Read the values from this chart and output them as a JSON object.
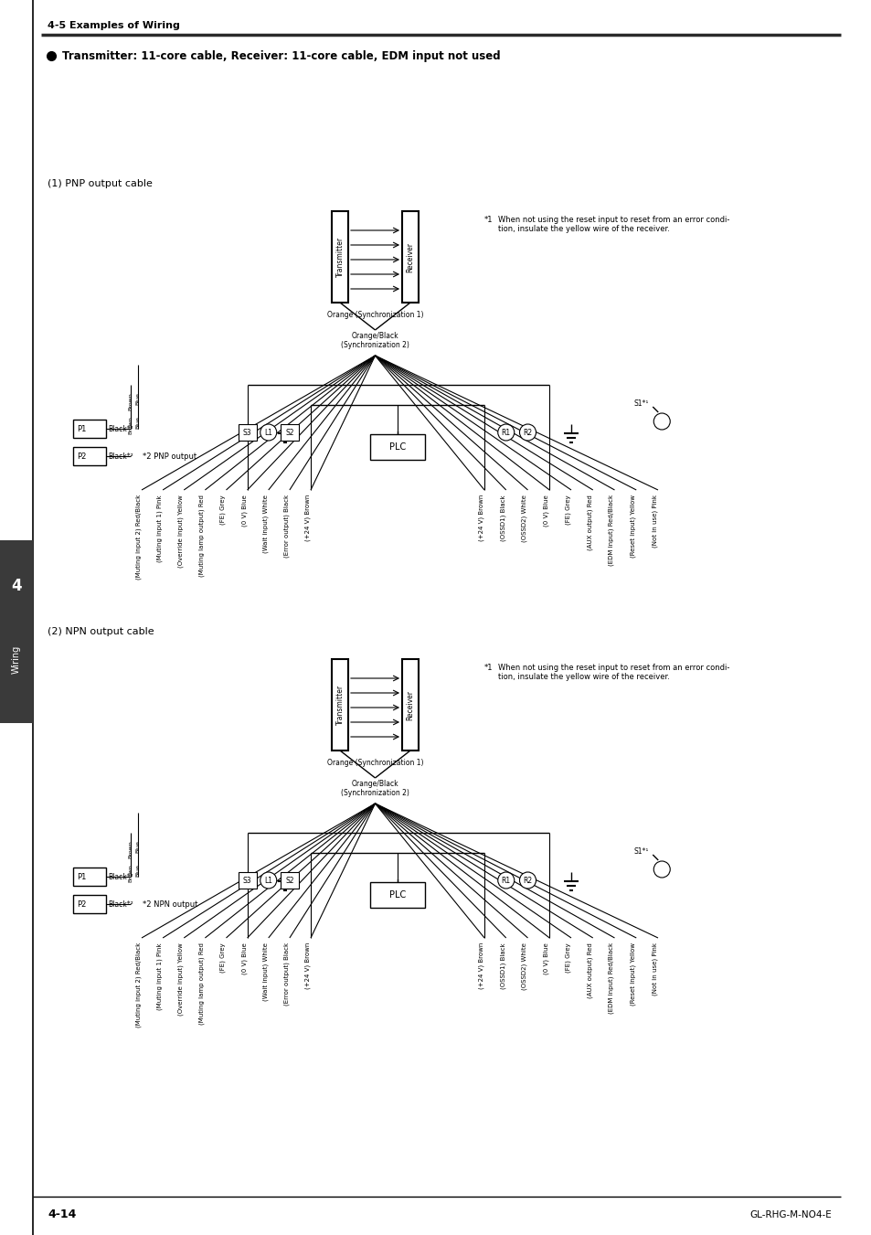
{
  "page_header": "4-5 Examples of Wiring",
  "section_title": "Transmitter: 11-core cable, Receiver: 11-core cable, EDM input not used",
  "diagram1_label": "(1) PNP output cable",
  "diagram2_label": "(2) NPN output cable",
  "footnote_text": "When not using the reset input to reset from an error condi-\ntion, insulate the yellow wire of the receiver.",
  "pnp_output_label": "*2 PNP output",
  "npn_output_label": "*2 NPN output",
  "plc_label": "PLC",
  "page_number": "4-14",
  "model_number": "GL-RHG-M-NO4-E",
  "transmitter_label": "Transmitter",
  "receiver_label": "Receiver",
  "sync1_label": "Orange (Synchronization 1)",
  "sync2_label": "Orange/Black\n(Synchronization 2)",
  "left_wire_labels": [
    "(Muting input 2) Red/Black",
    "(Muting input 1) Pink",
    "(Override input) Yellow",
    "(Muting lamp output) Red",
    "(FE) Grey",
    "(0 V) Blue",
    "(Wait input) White",
    "(Error output) Black",
    "(+24 V) Brown"
  ],
  "right_wire_labels": [
    "(+24 V) Brown",
    "(OSSD1) Black",
    "(OSSD2) White",
    "(0 V) Blue",
    "(FE) Grey",
    "(AUX output) Red",
    "(EDM input) Red/Black",
    "(Reset input) Yellow",
    "(Not in use) Pink"
  ],
  "bg_color": "#ffffff",
  "line_color": "#000000",
  "header_bar_color": "#2a2a2a",
  "side_tab_color": "#404040",
  "tab_text_color": "#ffffff"
}
